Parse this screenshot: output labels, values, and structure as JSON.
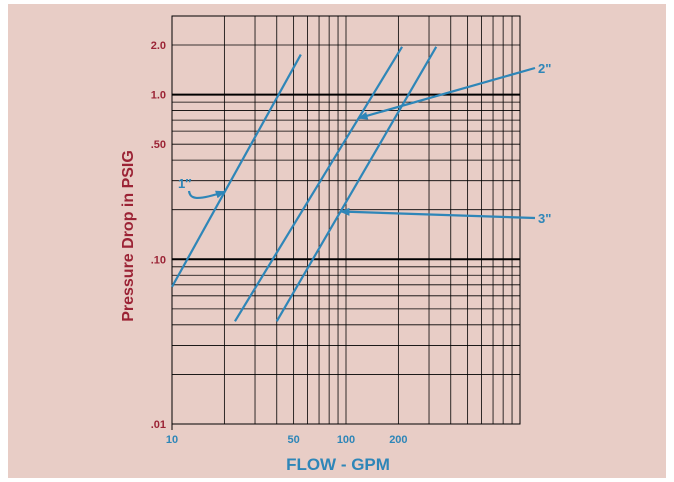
{
  "chart_data": {
    "type": "line",
    "xlabel": "FLOW - GPM",
    "ylabel": "Pressure Drop in PSIG",
    "x_scale": "log",
    "y_scale": "log",
    "xlim": [
      10,
      1000
    ],
    "ylim": [
      0.01,
      3
    ],
    "x_ticks": [
      {
        "value": 10,
        "label": "10"
      },
      {
        "value": 50,
        "label": "50"
      },
      {
        "value": 100,
        "label": "100"
      },
      {
        "value": 200,
        "label": "200"
      }
    ],
    "y_ticks": [
      {
        "value": 0.01,
        "label": ".01"
      },
      {
        "value": 0.1,
        "label": ".10"
      },
      {
        "value": 0.5,
        "label": ".50"
      },
      {
        "value": 1.0,
        "label": "1.0"
      },
      {
        "value": 2.0,
        "label": "2.0"
      }
    ],
    "grid": true,
    "series": [
      {
        "name": "1″",
        "x": [
          10,
          55
        ],
        "y": [
          0.068,
          1.75
        ]
      },
      {
        "name": "2\"",
        "x": [
          23,
          210
        ],
        "y": [
          0.042,
          1.95
        ]
      },
      {
        "name": "3\"",
        "x": [
          40,
          330
        ],
        "y": [
          0.042,
          1.95
        ]
      }
    ],
    "annotations": [
      {
        "text": "1″",
        "series": 0
      },
      {
        "text": "2\"",
        "series": 1
      },
      {
        "text": "3\"",
        "series": 2
      }
    ]
  },
  "colors": {
    "background": "#e8cdc6",
    "line": "#2e86b8",
    "grid": "#000000",
    "y_text": "#9b2335",
    "x_text": "#2e86b8"
  }
}
